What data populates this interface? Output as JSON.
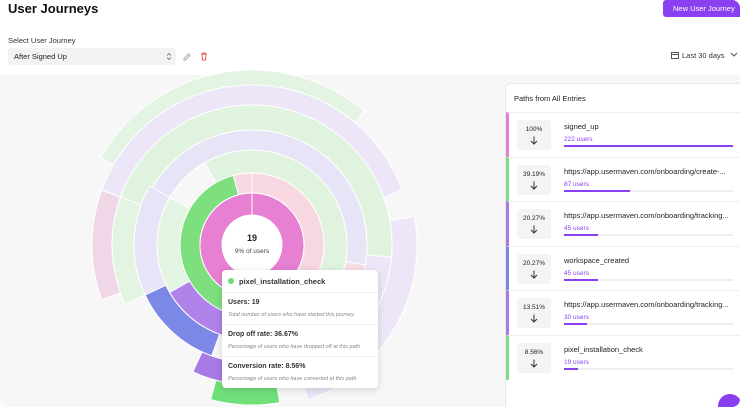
{
  "header": {
    "title": "User Journeys",
    "button": "New User Journey"
  },
  "controls": {
    "select_label": "Select User Journey",
    "select_value": "After Signed Up",
    "date_range": "Last 30 days"
  },
  "sunburst": {
    "center_value": "19",
    "center_caption": "9% of users"
  },
  "tooltip": {
    "title": "pixel_installation_check",
    "rows": [
      {
        "label": "Users: 19",
        "note": "Total number of users who have started this journey"
      },
      {
        "label": "Drop off rate: 36.67%",
        "note": "Percentage of users who have dropped off at this path"
      },
      {
        "label": "Conversion rate: 8.56%",
        "note": "Percentage of users who have converted at this path"
      }
    ]
  },
  "panel": {
    "title": "Paths from All Entries",
    "items": [
      {
        "share": {
          "value": 100,
          "label": "100%"
        },
        "name": "signed_up",
        "users": "222 users",
        "color": "#e77fd3"
      },
      {
        "share": {
          "value": 39.19,
          "label": "39.19%"
        },
        "name": "https://app.usermaven.com/onboarding/create-...",
        "users": "87 users",
        "color": "#7fdc84"
      },
      {
        "share": {
          "value": 20.27,
          "label": "20.27%"
        },
        "name": "https://app.usermaven.com/onboarding/tracking...",
        "users": "45 users",
        "color": "#a77ae6"
      },
      {
        "share": {
          "value": 20.27,
          "label": "20.27%"
        },
        "name": "workspace_created",
        "users": "45 users",
        "color": "#7b86e4"
      },
      {
        "share": {
          "value": 13.51,
          "label": "13.51%"
        },
        "name": "https://app.usermaven.com/onboarding/tracking...",
        "users": "30 users",
        "color": "#a77ae6"
      },
      {
        "share": {
          "value": 8.56,
          "label": "8.56%"
        },
        "name": "pixel_installation_check",
        "users": "19 users",
        "color": "#7fdc84"
      }
    ]
  }
}
